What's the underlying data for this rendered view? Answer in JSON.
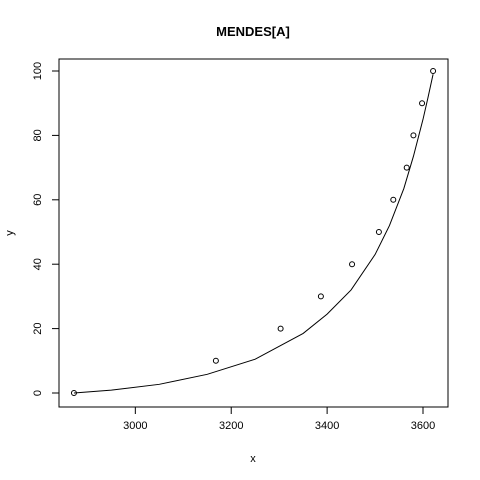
{
  "chart_data": {
    "type": "scatter",
    "title": "MENDES[A]",
    "xlabel": "x",
    "ylabel": "y",
    "xlim": [
      2870,
      3625
    ],
    "ylim": [
      0,
      100
    ],
    "x_ticks": [
      3000,
      3200,
      3400,
      3600
    ],
    "y_ticks": [
      0,
      20,
      40,
      60,
      80,
      100
    ],
    "x_tick_labels": [
      "3000",
      "3200",
      "3400",
      "3600"
    ],
    "y_tick_labels": [
      "0",
      "20",
      "40",
      "60",
      "80",
      "100"
    ],
    "grid": false,
    "legend": "none",
    "points": {
      "marker": "open-circle",
      "x": [
        2872,
        3168,
        3303,
        3387,
        3452,
        3508,
        3538,
        3566,
        3580,
        3598,
        3621
      ],
      "y": [
        0,
        10,
        20,
        30,
        40,
        50,
        60,
        70,
        80,
        90,
        100
      ]
    },
    "fitted_curve": {
      "type": "line",
      "x": [
        2872,
        2950,
        3050,
        3150,
        3250,
        3350,
        3400,
        3450,
        3500,
        3530,
        3560,
        3580,
        3600,
        3610,
        3621
      ],
      "y": [
        0,
        0.9,
        2.7,
        5.8,
        10.5,
        18.5,
        24.5,
        32.0,
        43.0,
        52.0,
        63.5,
        73.5,
        85.0,
        91.5,
        99.0
      ]
    }
  }
}
